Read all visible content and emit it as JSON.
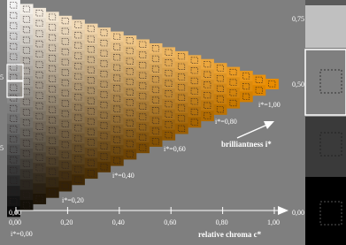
{
  "x_axis": {
    "ticks": [
      "0,00",
      "0,20",
      "0,40",
      "0,60",
      "0,80",
      "1,00"
    ],
    "title": "relative chroma c*"
  },
  "levels": [
    "i*=0,00",
    "i*=0,20",
    "i*=0,40",
    "i*=0,60",
    "i*=0,80",
    "i*=1,00"
  ],
  "arrow_label": "brilliantness i*",
  "left_labels": [
    "5",
    "5",
    "0,00"
  ],
  "right_labels": [
    "0,75",
    "0,50",
    "0,00"
  ]
}
